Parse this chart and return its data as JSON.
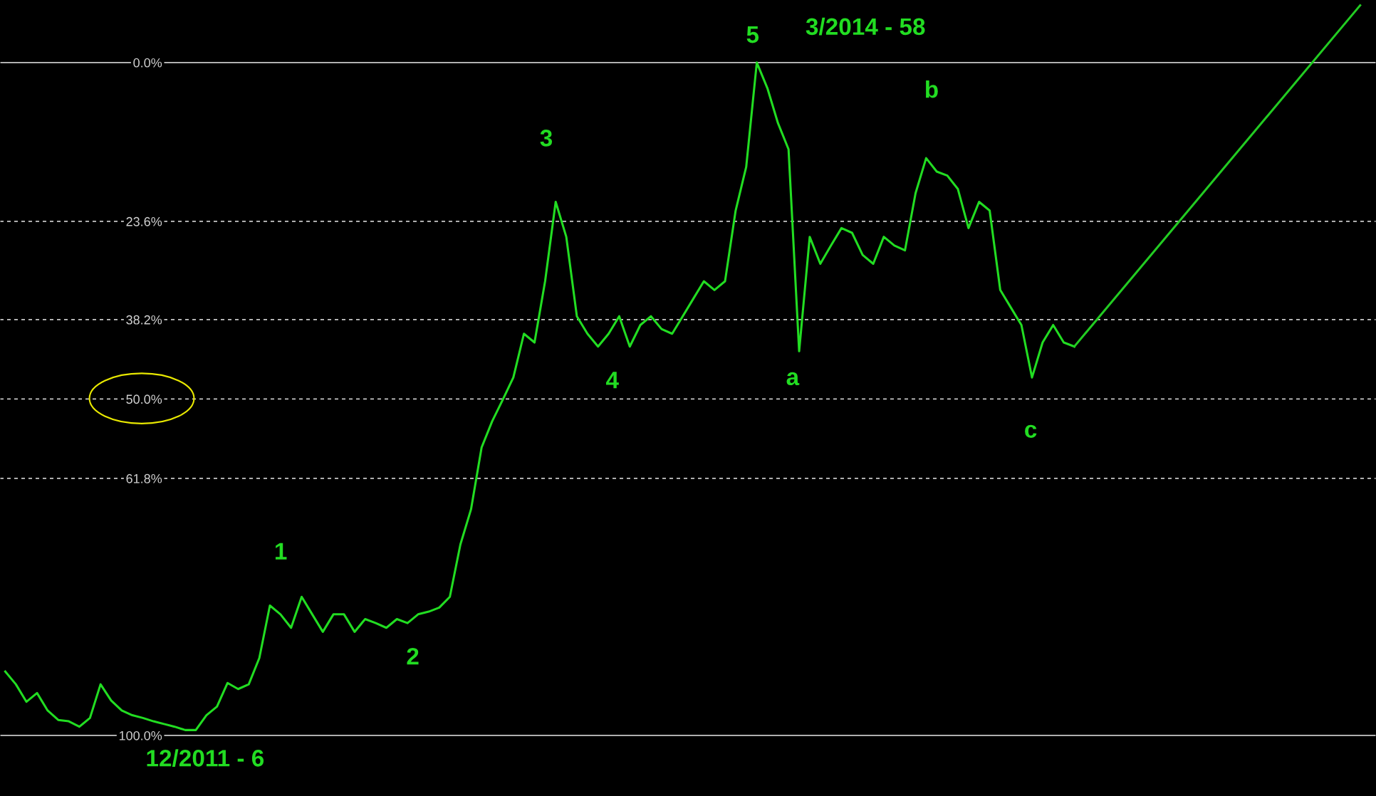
{
  "chart_data": {
    "type": "line",
    "categories": [
      null,
      null,
      null,
      null,
      null,
      null,
      null,
      null,
      null,
      null,
      null,
      null,
      null,
      null,
      null,
      null,
      null,
      null,
      null,
      null,
      null,
      null,
      null,
      null,
      null,
      null,
      null,
      null,
      null,
      null,
      null,
      null,
      null,
      null,
      null,
      null,
      null,
      null,
      null,
      null,
      null,
      null,
      null,
      null,
      null,
      null,
      null,
      null,
      null,
      null,
      null,
      null,
      null,
      null,
      null,
      null,
      null,
      null,
      null,
      null,
      null,
      null,
      null,
      null,
      null,
      null,
      null,
      null,
      null,
      null,
      null,
      null,
      null,
      null,
      null,
      null,
      null,
      null,
      null,
      null,
      null,
      null,
      null,
      null,
      null,
      null,
      null,
      null,
      null,
      null,
      null,
      null,
      null,
      null,
      null,
      null,
      null,
      null,
      null,
      null,
      null,
      null,
      null,
      null,
      null,
      null,
      null,
      null,
      null,
      null,
      null,
      null,
      null,
      null,
      null,
      null,
      null,
      null,
      null,
      null,
      null,
      null,
      null,
      null,
      null,
      null,
      null,
      null,
      null,
      null
    ],
    "series": [
      {
        "color": "#22dd22",
        "values": [
          90.5,
          92.4,
          95.0,
          93.7,
          96.3,
          97.7,
          97.9,
          98.7,
          97.4,
          92.4,
          94.8,
          96.3,
          97.0,
          97.4,
          97.9,
          98.3,
          98.7,
          99.2,
          99.2,
          97.0,
          95.7,
          92.2,
          93.1,
          92.4,
          88.5,
          80.7,
          82.0,
          84.0,
          79.4,
          82.0,
          84.6,
          82.0,
          82.0,
          84.6,
          82.7,
          83.3,
          84.0,
          82.7,
          83.3,
          82.0,
          81.6,
          81.0,
          79.4,
          71.6,
          66.4,
          57.2,
          53.3,
          50.1,
          46.8,
          40.3,
          41.6,
          32.5,
          20.7,
          25.9,
          37.7,
          40.3,
          42.2,
          40.3,
          37.7,
          42.2,
          39.0,
          37.7,
          39.6,
          40.3,
          37.7,
          35.1,
          32.5,
          33.8,
          32.5,
          22.0,
          15.5,
          0.0,
          3.8,
          9.0,
          12.9,
          42.9,
          25.9,
          29.9,
          27.2,
          24.6,
          25.3,
          28.6,
          29.9,
          25.9,
          27.2,
          27.9,
          19.4,
          14.2,
          16.2,
          16.8,
          18.8,
          24.6,
          20.7,
          22.0,
          33.8,
          36.4,
          39.0,
          46.8,
          41.6,
          39.0,
          41.6,
          42.2,
          null,
          null,
          null,
          null,
          null,
          null,
          null,
          null,
          null,
          null,
          null,
          null,
          null,
          null,
          null,
          null,
          null,
          null,
          null,
          null,
          null,
          null,
          null,
          null,
          null,
          null,
          null,
          null
        ]
      },
      {
        "color": "#22cc22",
        "values": [
          null,
          null,
          null,
          null,
          null,
          null,
          null,
          null,
          null,
          null,
          null,
          null,
          null,
          null,
          null,
          null,
          null,
          null,
          null,
          null,
          null,
          null,
          null,
          null,
          null,
          null,
          null,
          null,
          null,
          null,
          null,
          null,
          null,
          null,
          null,
          null,
          null,
          null,
          null,
          null,
          null,
          null,
          null,
          null,
          null,
          null,
          null,
          null,
          null,
          null,
          null,
          null,
          null,
          null,
          null,
          null,
          null,
          null,
          null,
          null,
          null,
          null,
          null,
          null,
          null,
          null,
          null,
          null,
          null,
          null,
          null,
          null,
          null,
          null,
          null,
          null,
          null,
          null,
          null,
          null,
          null,
          null,
          null,
          null,
          null,
          null,
          null,
          null,
          null,
          null,
          null,
          null,
          null,
          null,
          null,
          null,
          null,
          null,
          null,
          null,
          null,
          42.2,
          null,
          null,
          null,
          null,
          null,
          null,
          null,
          null,
          null,
          null,
          null,
          null,
          null,
          null,
          null,
          null,
          null,
          null,
          null,
          null,
          null,
          null,
          null,
          null,
          null,
          null,
          -8.5,
          null
        ]
      }
    ],
    "ylim": [
      109,
      -9.3
    ],
    "yticks": [
      {
        "value": 0,
        "label": "0.0%"
      },
      {
        "value": 23.6,
        "label": "23.6%"
      },
      {
        "value": 38.2,
        "label": "38.2%"
      },
      {
        "value": 50,
        "label": "50.0%"
      },
      {
        "value": 61.8,
        "label": "61.8%"
      },
      {
        "value": 100,
        "label": "100.0%"
      }
    ],
    "tick_labels": "y",
    "ref_lines": [
      {
        "axis": "y",
        "value": 0,
        "color": "#c8c8c8",
        "line_style": "solid"
      },
      {
        "axis": "y",
        "value": 23.6,
        "color": "#c8c8c8",
        "line_style": "dashed"
      },
      {
        "axis": "y",
        "value": 38.2,
        "color": "#c8c8c8",
        "line_style": "dashed"
      },
      {
        "axis": "y",
        "value": 50,
        "color": "#c8c8c8",
        "line_style": "dashed"
      },
      {
        "axis": "y",
        "value": 61.8,
        "color": "#c8c8c8",
        "line_style": "dashed"
      },
      {
        "axis": "y",
        "value": 100,
        "color": "#c8c8c8",
        "line_style": "solid"
      }
    ],
    "annotations": [
      "5",
      "3/2014 - 58",
      "3",
      "b",
      "1",
      "2",
      "4",
      "a",
      "c",
      "12/2011 - 6"
    ],
    "grid": false,
    "legend": false,
    "marker": "none",
    "line_style": "solid"
  }
}
